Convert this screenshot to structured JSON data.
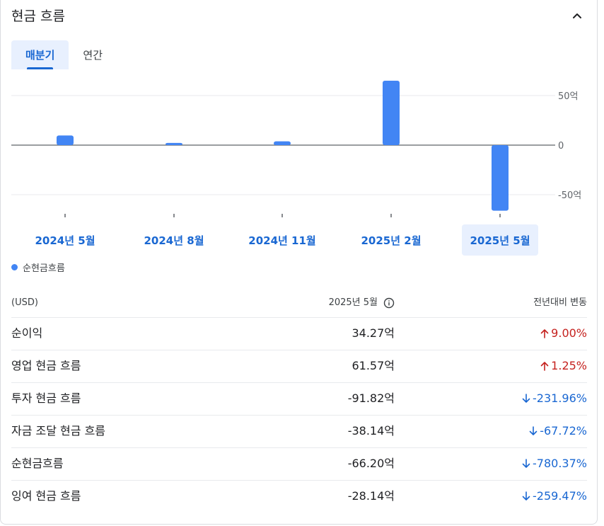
{
  "title": "현금 흐름",
  "icons": {
    "collapse": "chevron-up-icon",
    "info": "info-icon",
    "up": "arrow-up-icon",
    "down": "arrow-down-icon"
  },
  "tabs": [
    {
      "label": "매분기",
      "active": true
    },
    {
      "label": "연간",
      "active": false
    }
  ],
  "colors": {
    "bar": "#4285f4",
    "up": "#c5221f",
    "down": "#1967d2",
    "accent": "#1967d2"
  },
  "chart_data": {
    "type": "bar",
    "categories": [
      "2024년 5월",
      "2024년 8월",
      "2024년 11월",
      "2025년 2월",
      "2025년 5월"
    ],
    "series": [
      {
        "name": "순현금흐름",
        "values": [
          9.7,
          2.2,
          3.8,
          65.0,
          -66.2
        ]
      }
    ],
    "y_ticks": [
      {
        "value": 50,
        "label": "50억"
      },
      {
        "value": 0,
        "label": "0"
      },
      {
        "value": -50,
        "label": "-50억"
      }
    ],
    "ylim": [
      -75,
      75
    ],
    "selected_category": "2025년 5월",
    "grid": true,
    "legend_position": "bottom-left"
  },
  "legend": {
    "label": "순현금흐름"
  },
  "table": {
    "headers": {
      "col1": "(USD)",
      "col2": "2025년 5월",
      "col3": "전년대비 변동"
    },
    "rows": [
      {
        "name": "순이익",
        "value": "34.27억",
        "change": "9.00%",
        "direction": "up"
      },
      {
        "name": "영업 현금 흐름",
        "value": "61.57억",
        "change": "1.25%",
        "direction": "up"
      },
      {
        "name": "투자 현금 흐름",
        "value": "-91.82억",
        "change": "-231.96%",
        "direction": "down"
      },
      {
        "name": "자금 조달 현금 흐름",
        "value": "-38.14억",
        "change": "-67.72%",
        "direction": "down"
      },
      {
        "name": "순현금흐름",
        "value": "-66.20억",
        "change": "-780.37%",
        "direction": "down"
      },
      {
        "name": "잉여 현금 흐름",
        "value": "-28.14억",
        "change": "-259.47%",
        "direction": "down"
      }
    ]
  }
}
